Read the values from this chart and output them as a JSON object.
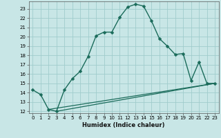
{
  "title": "",
  "xlabel": "Humidex (Indice chaleur)",
  "background_color": "#c8e6e6",
  "grid_color": "#a0cccc",
  "line_color": "#1a6b5a",
  "xlim": [
    -0.5,
    23.5
  ],
  "ylim": [
    11.8,
    23.8
  ],
  "xticks": [
    0,
    1,
    2,
    3,
    4,
    5,
    6,
    7,
    8,
    9,
    10,
    11,
    12,
    13,
    14,
    15,
    16,
    17,
    18,
    19,
    20,
    21,
    22,
    23
  ],
  "yticks": [
    12,
    13,
    14,
    15,
    16,
    17,
    18,
    19,
    20,
    21,
    22,
    23
  ],
  "line1_x": [
    0,
    1,
    2,
    3,
    4,
    5,
    6,
    7,
    8,
    9,
    10,
    11,
    12,
    13,
    14,
    15,
    16,
    17,
    18,
    19,
    20,
    21,
    22,
    23
  ],
  "line1_y": [
    14.3,
    13.8,
    12.2,
    12.0,
    14.3,
    15.5,
    16.3,
    17.9,
    20.1,
    20.5,
    20.5,
    22.1,
    23.2,
    23.5,
    23.3,
    21.7,
    19.8,
    19.0,
    18.1,
    18.2,
    15.3,
    17.3,
    15.0,
    15.0
  ],
  "line2_x": [
    2,
    23
  ],
  "line2_y": [
    12.2,
    15.0
  ],
  "line3_x": [
    3,
    23
  ],
  "line3_y": [
    12.0,
    15.0
  ]
}
